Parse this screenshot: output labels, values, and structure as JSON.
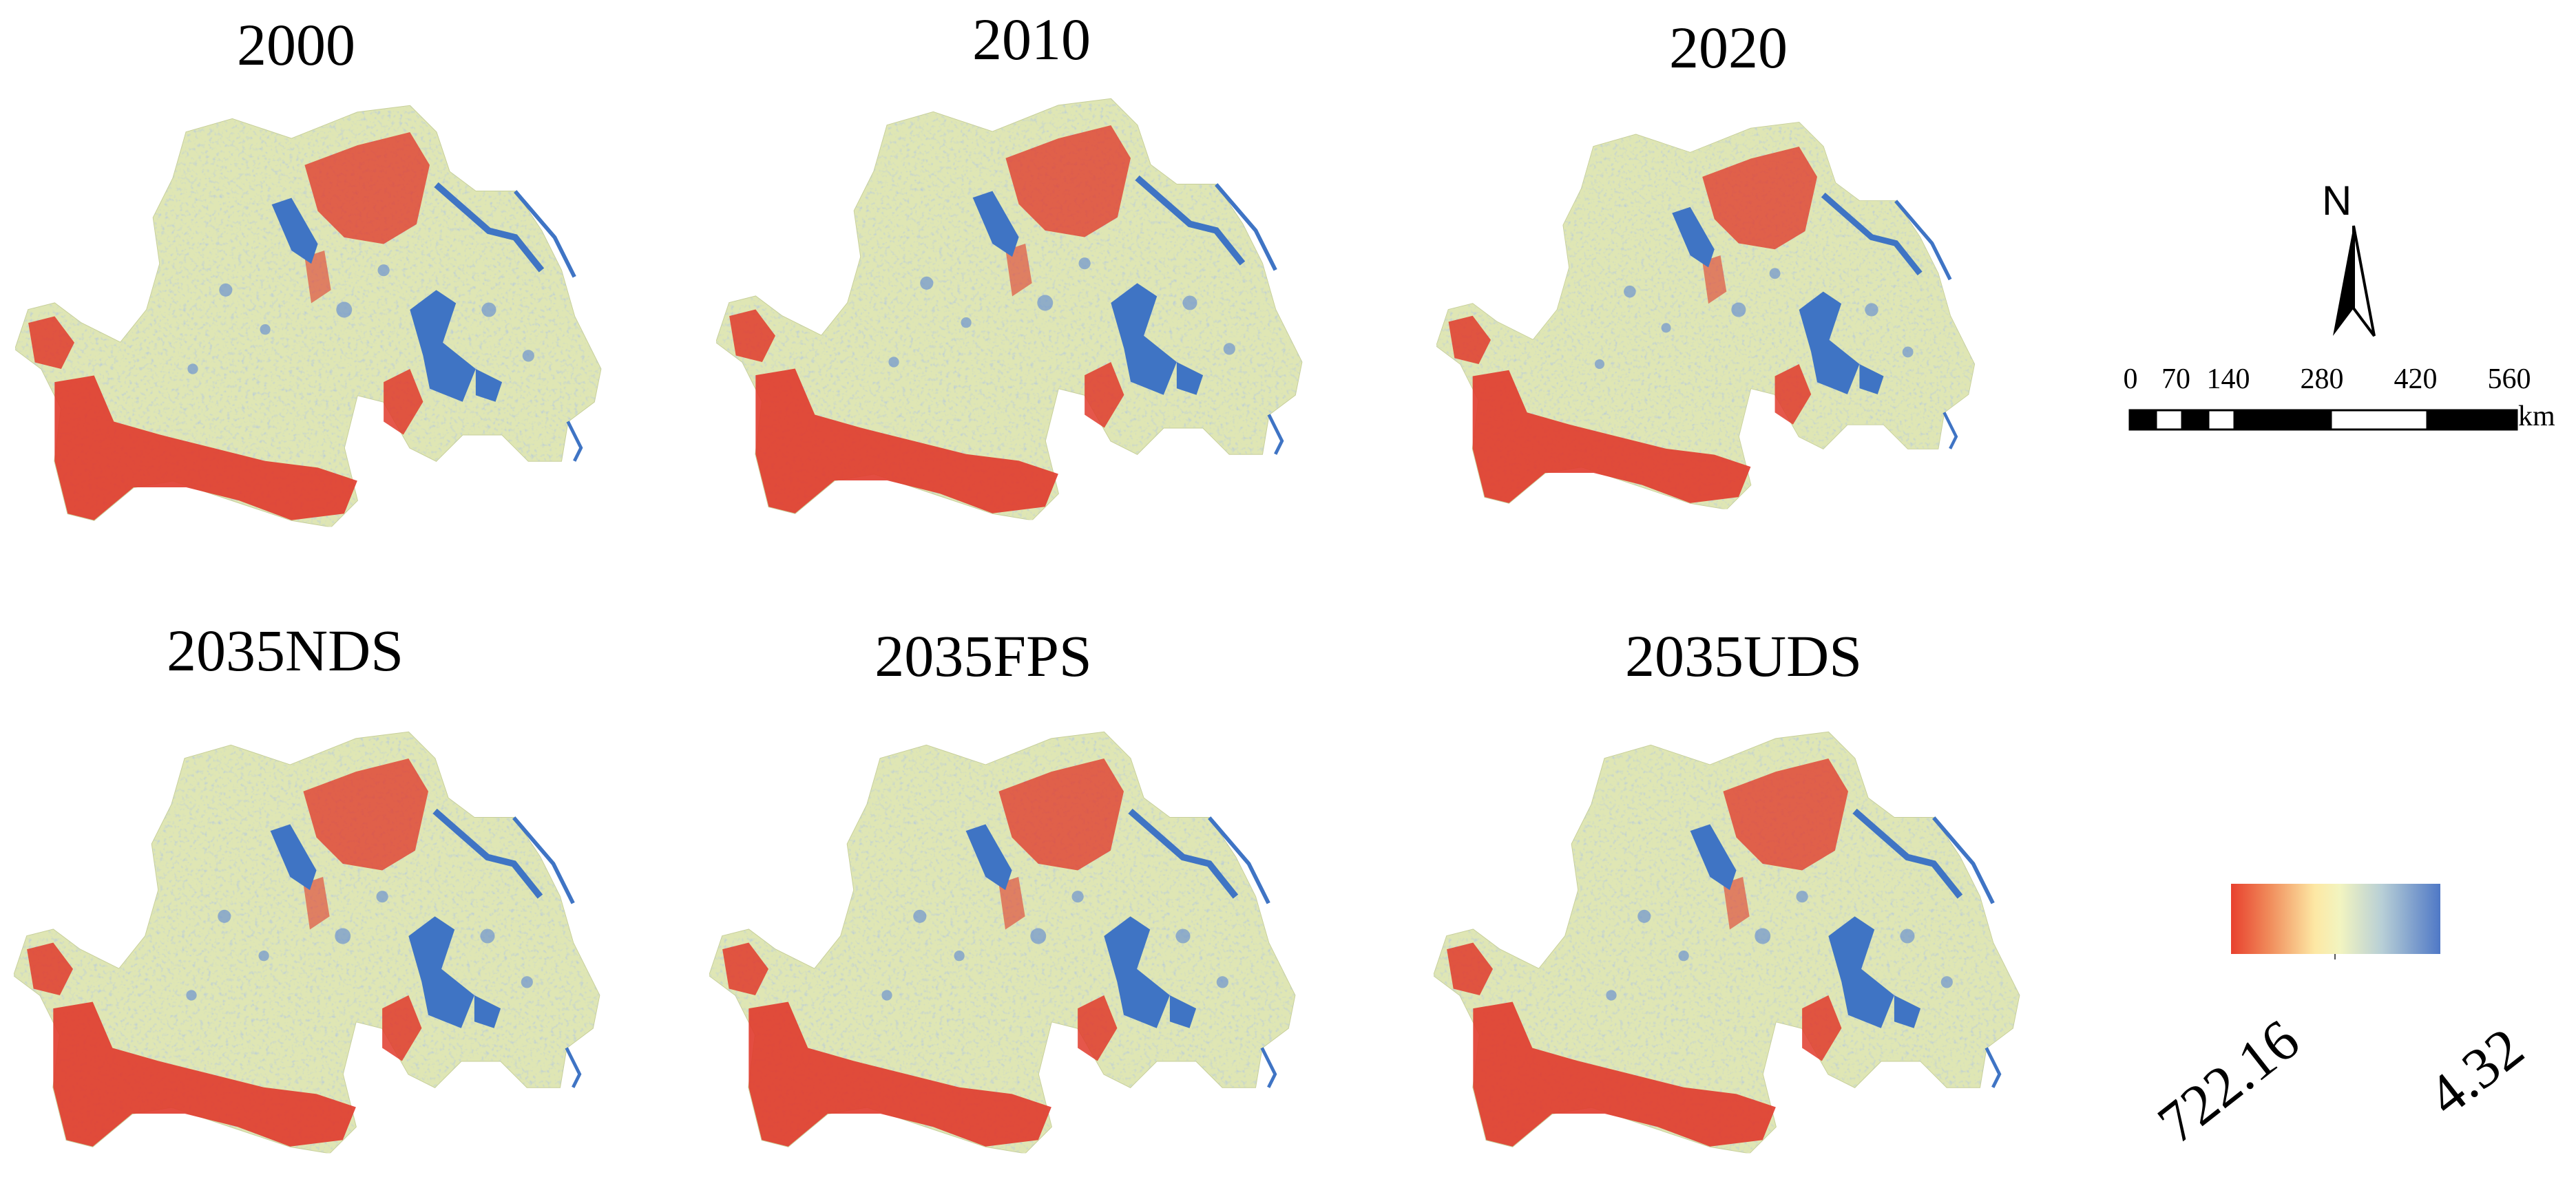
{
  "panels": [
    {
      "title": "2000"
    },
    {
      "title": "2010"
    },
    {
      "title": "2020"
    },
    {
      "title": "2035NDS"
    },
    {
      "title": "2035FPS"
    },
    {
      "title": "2035UDS"
    }
  ],
  "north_arrow": {
    "letter": "N"
  },
  "scale_bar": {
    "ticks": [
      "0",
      "70",
      "140",
      "280",
      "420",
      "560"
    ],
    "unit": "km"
  },
  "legend": {
    "max_label": "722.16",
    "min_label": "4.32",
    "colors": {
      "high": "#e8402e",
      "mid": "#f2f4c0",
      "low": "#4f78c6"
    }
  },
  "colors": {
    "base_land": "#eef2c2",
    "water": "#3f74c4",
    "high_value": "#e03a2c"
  }
}
